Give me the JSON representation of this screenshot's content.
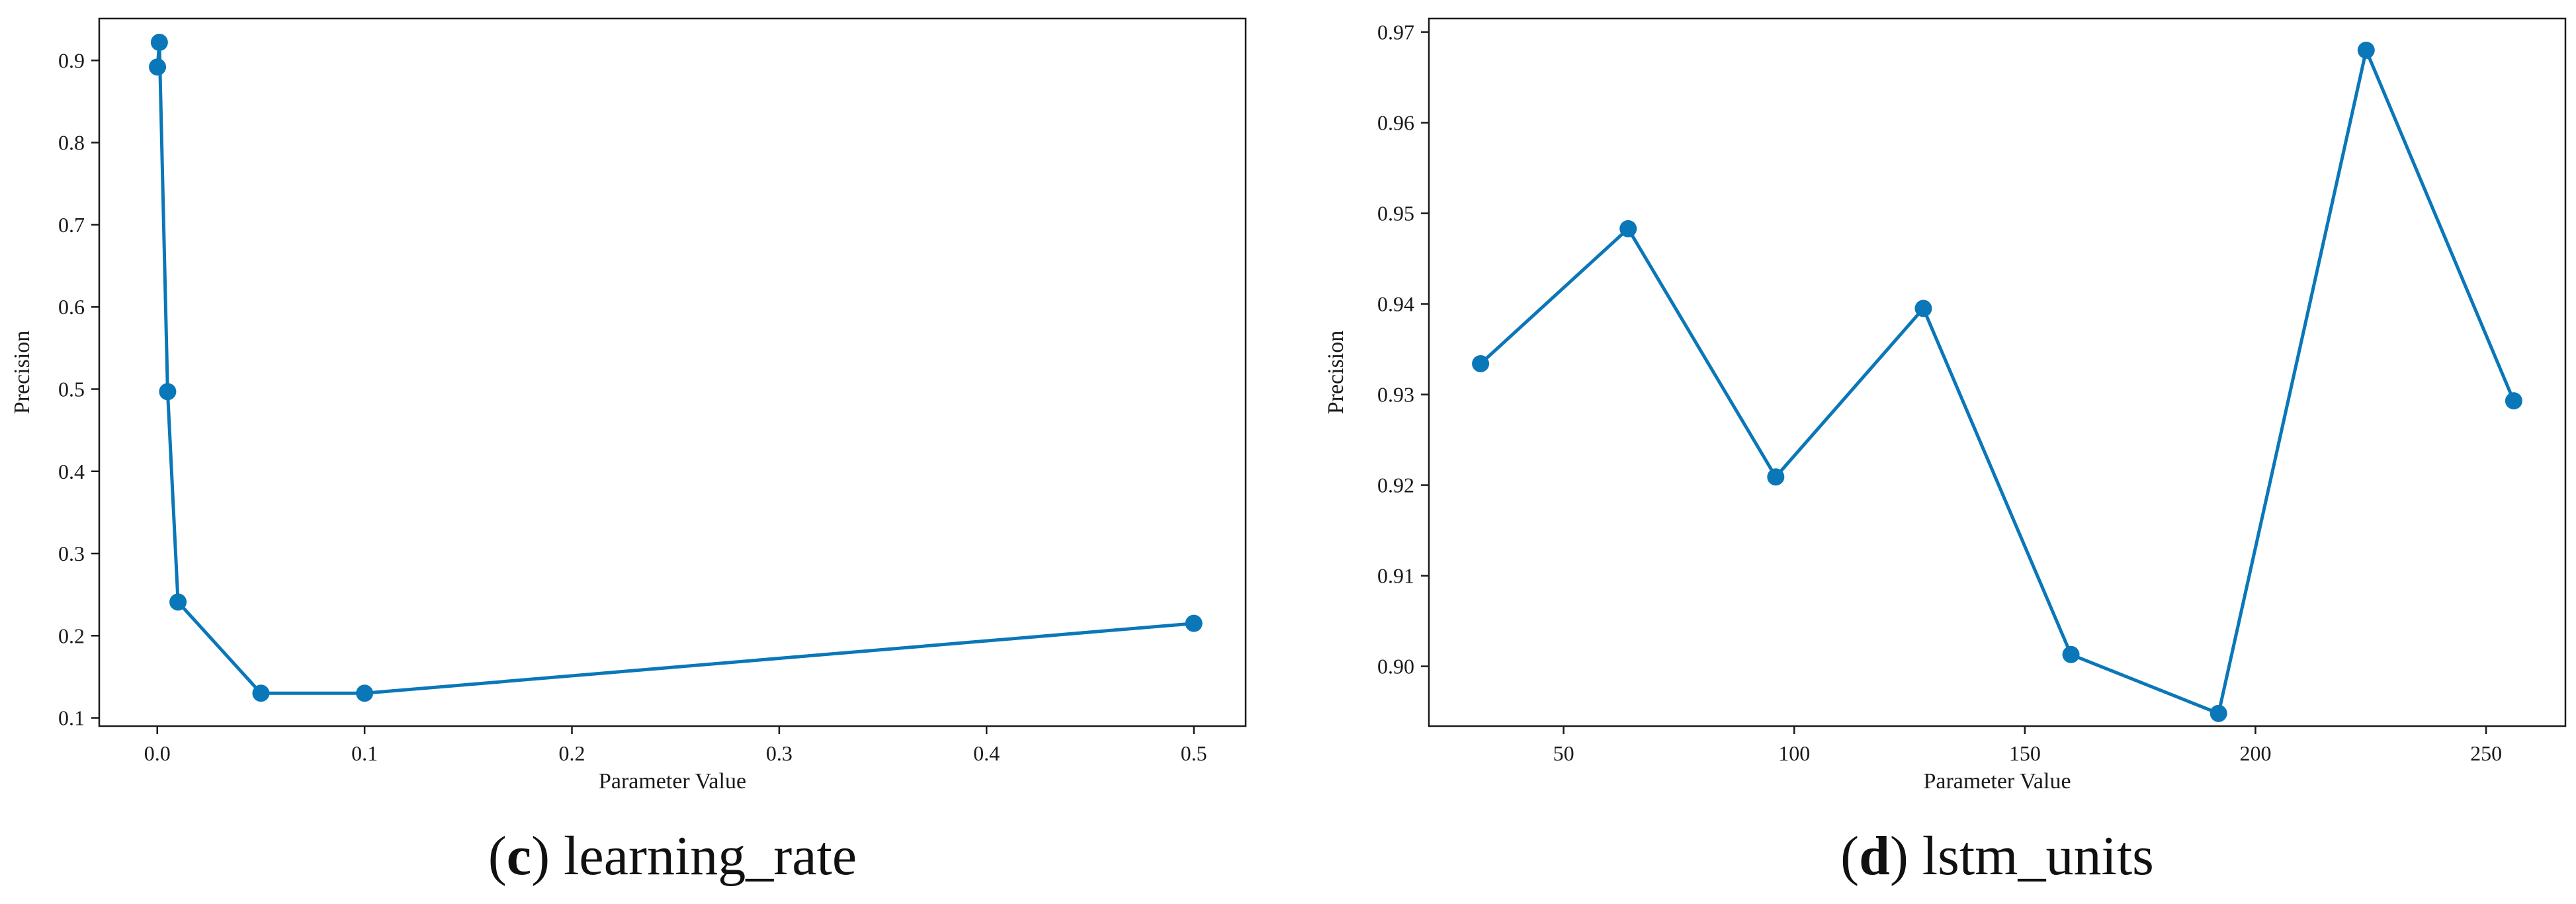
{
  "colors": {
    "series": "#0a77b8",
    "axis": "#1a1a1a",
    "background": "#ffffff"
  },
  "chart_data": [
    {
      "type": "line",
      "panel_letter": "c",
      "caption_text": "learning_rate",
      "xlabel": "Parameter Value",
      "ylabel": "Precision",
      "xlim": [
        -0.028,
        0.525
      ],
      "ylim": [
        0.09,
        0.951
      ],
      "xticks": [
        0.0,
        0.1,
        0.2,
        0.3,
        0.4,
        0.5
      ],
      "xtick_labels": [
        "0.0",
        "0.1",
        "0.2",
        "0.3",
        "0.4",
        "0.5"
      ],
      "yticks": [
        0.1,
        0.2,
        0.3,
        0.4,
        0.5,
        0.6,
        0.7,
        0.8,
        0.9
      ],
      "ytick_labels": [
        "0.1",
        "0.2",
        "0.3",
        "0.4",
        "0.5",
        "0.6",
        "0.7",
        "0.8",
        "0.9"
      ],
      "grid": false,
      "markers": true,
      "x": [
        0.0001,
        0.001,
        0.005,
        0.01,
        0.05,
        0.1,
        0.5
      ],
      "y": [
        0.892,
        0.922,
        0.497,
        0.241,
        0.13,
        0.13,
        0.215
      ]
    },
    {
      "type": "line",
      "panel_letter": "d",
      "caption_text": "lstm_units",
      "xlabel": "Parameter Value",
      "ylabel": "Precision",
      "xlim": [
        20.8,
        267.2
      ],
      "ylim": [
        0.8934,
        0.9715
      ],
      "xticks": [
        50,
        100,
        150,
        200,
        250
      ],
      "xtick_labels": [
        "50",
        "100",
        "150",
        "200",
        "250"
      ],
      "yticks": [
        0.9,
        0.91,
        0.92,
        0.93,
        0.94,
        0.95,
        0.96,
        0.97
      ],
      "ytick_labels": [
        "0.90",
        "0.91",
        "0.92",
        "0.93",
        "0.94",
        "0.95",
        "0.96",
        "0.97"
      ],
      "grid": false,
      "markers": true,
      "x": [
        32,
        64,
        96,
        128,
        160,
        192,
        224,
        256
      ],
      "y": [
        0.9334,
        0.9483,
        0.9209,
        0.9395,
        0.9013,
        0.8948,
        0.968,
        0.9293
      ]
    }
  ]
}
